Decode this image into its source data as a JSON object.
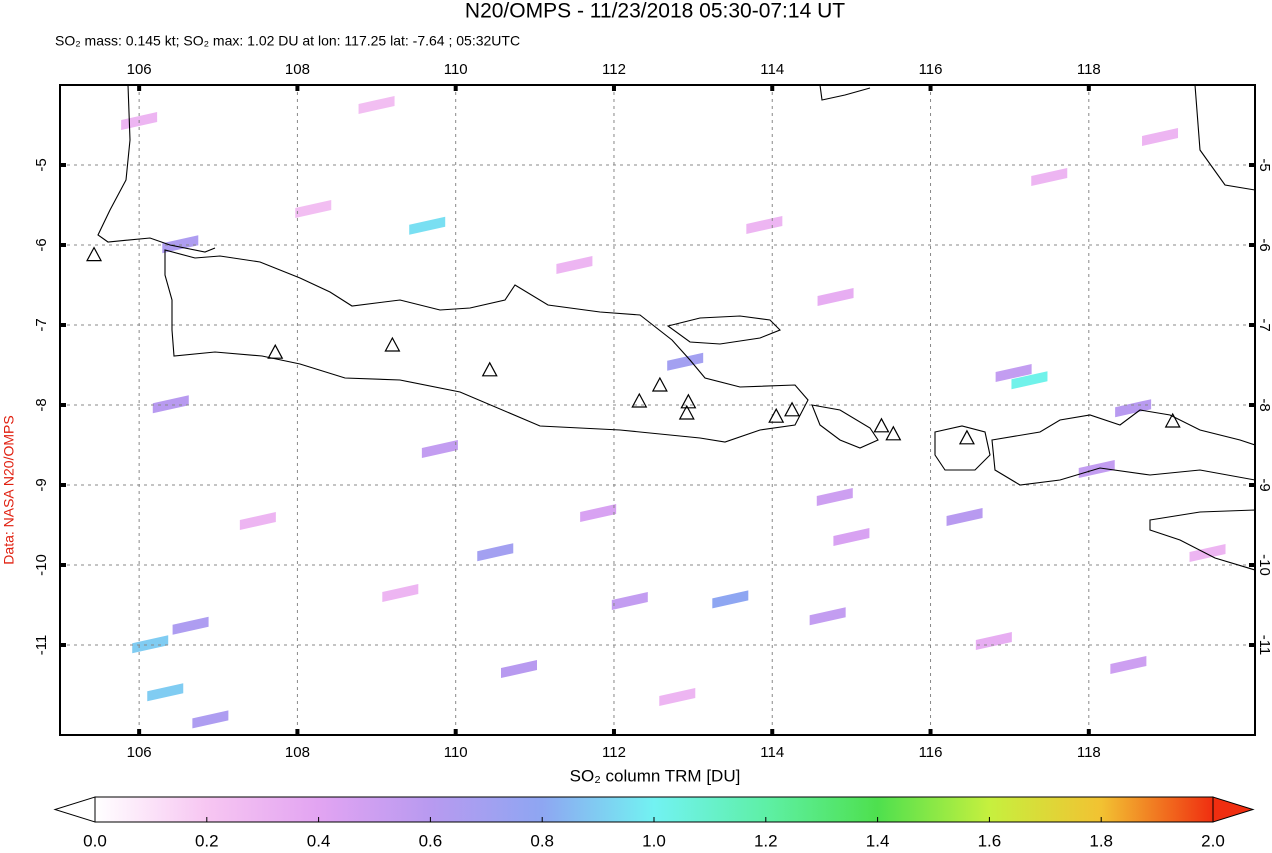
{
  "chart_data": {
    "type": "map",
    "title": "N20/OMPS - 11/23/2018 05:30-07:14 UT",
    "subtitle": "SO₂ mass: 0.145 kt; SO₂ max: 1.02 DU at lon: 117.25 lat: -7.64 ; 05:32UTC",
    "source": "Data: NASA N20/OMPS",
    "xlim": [
      105,
      120.1
    ],
    "ylim": [
      -12.125,
      -4
    ],
    "xticks": [
      106,
      108,
      110,
      112,
      114,
      116,
      118
    ],
    "yticks": [
      -5,
      -6,
      -7,
      -8,
      -9,
      -10,
      -11
    ],
    "grid": true,
    "colorbar": {
      "label": "SO₂ column TRM [DU]",
      "lim": [
        0,
        2
      ],
      "ticks": [
        {
          "value": 0,
          "label": "0.0"
        },
        0.2,
        0.4,
        0.6,
        0.8,
        {
          "value": 1,
          "label": "1.0"
        },
        1.2,
        1.4,
        1.6,
        1.8,
        {
          "value": 2,
          "label": "2.0"
        }
      ],
      "colors": [
        "#ffffff",
        "#f7c6f2",
        "#e2a4f2",
        "#b89af0",
        "#8ea6f2",
        "#72f2f2",
        "#5ef0a6",
        "#4ee04e",
        "#c6f03e",
        "#f2c232",
        "#f02e10"
      ]
    },
    "volcanoes": {
      "lon": [
        105.43,
        107.72,
        109.2,
        110.43,
        112.32,
        112.58,
        112.94,
        112.92,
        114.05,
        114.25,
        115.38,
        115.53,
        116.46,
        119.06
      ],
      "lat": [
        -6.12,
        -7.34,
        -7.25,
        -7.56,
        -7.95,
        -7.75,
        -7.96,
        -8.1,
        -8.14,
        -8.06,
        -8.26,
        -8.36,
        -8.41,
        -8.2
      ]
    },
    "pixels": {
      "lon": [
        109.64,
        106.52,
        117.25,
        117.05,
        106.4,
        109.8,
        110.5,
        112.2,
        113.47,
        106.14,
        106.33,
        106.65,
        106.9,
        110.8,
        111.8,
        114.7,
        116.43,
        114.79,
        112.9,
        118.1,
        118.56,
        115.0,
        118.5,
        113.9,
        108.2,
        111.5,
        114.8,
        117.5,
        118.9,
        107.5,
        109.3,
        112.8,
        116.8,
        119.5,
        106.0,
        109.0
      ],
      "lat": [
        -5.71,
        -5.94,
        -7.64,
        -7.55,
        -7.94,
        -8.5,
        -9.79,
        -10.4,
        -10.38,
        -10.94,
        -11.54,
        -10.71,
        -11.88,
        -11.25,
        -9.3,
        -10.59,
        -9.35,
        -9.1,
        -7.41,
        -8.75,
        -7.99,
        -9.6,
        -11.2,
        -5.7,
        -5.5,
        -6.2,
        -6.6,
        -5.1,
        -4.6,
        -9.4,
        -10.3,
        -11.6,
        -10.9,
        -9.8,
        -4.4,
        -4.2
      ],
      "values": [
        0.95,
        0.65,
        1.02,
        0.55,
        0.6,
        0.55,
        0.7,
        0.55,
        0.8,
        0.9,
        0.9,
        0.65,
        0.65,
        0.6,
        0.45,
        0.55,
        0.6,
        0.5,
        0.7,
        0.55,
        0.6,
        0.45,
        0.5,
        0.3,
        0.25,
        0.3,
        0.35,
        0.3,
        0.3,
        0.3,
        0.3,
        0.3,
        0.35,
        0.3,
        0.3,
        0.25
      ]
    }
  }
}
